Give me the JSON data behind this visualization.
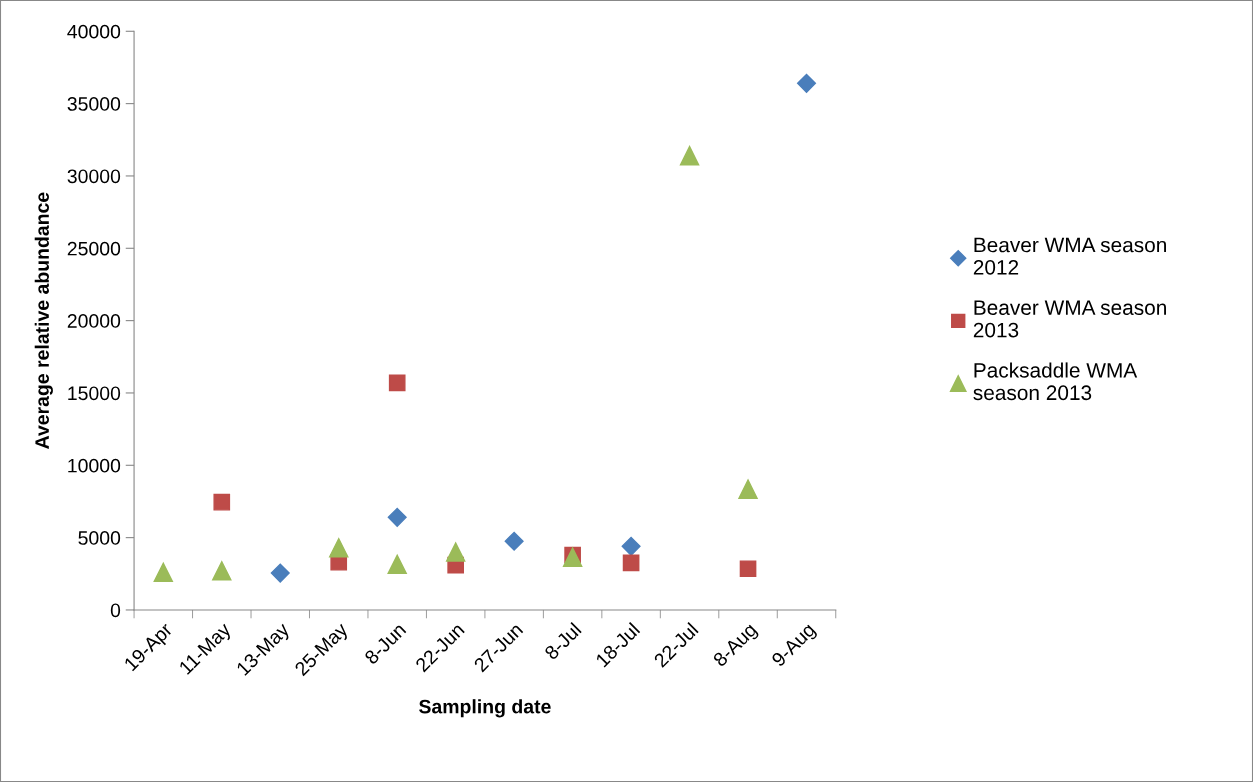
{
  "chart_data": {
    "type": "scatter",
    "xlabel": "Sampling date",
    "ylabel": "Average relative abundance",
    "categories": [
      "19-Apr",
      "11-May",
      "13-May",
      "25-May",
      "8-Jun",
      "22-Jun",
      "27-Jun",
      "8-Jul",
      "18-Jul",
      "22-Jul",
      "8-Aug",
      "9-Aug"
    ],
    "series": [
      {
        "name": "Beaver WMA season 2012",
        "color": "#4a7ebb",
        "marker": "diamond",
        "values": [
          null,
          null,
          2550,
          null,
          6400,
          null,
          4750,
          null,
          4400,
          null,
          null,
          36400
        ]
      },
      {
        "name": "Beaver WMA season 2013",
        "color": "#be4b48",
        "marker": "square",
        "values": [
          null,
          7450,
          null,
          3300,
          15700,
          3100,
          null,
          3800,
          3250,
          null,
          2850,
          null
        ]
      },
      {
        "name": "Packsaddle WMA season 2013",
        "color": "#9bbb59",
        "marker": "triangle",
        "values": [
          2600,
          2700,
          null,
          4300,
          3150,
          4000,
          null,
          3650,
          null,
          31400,
          8350,
          null
        ]
      }
    ],
    "ylim": [
      0,
      40000
    ],
    "yticks": [
      0,
      5000,
      10000,
      15000,
      20000,
      25000,
      30000,
      35000,
      40000
    ],
    "grid": false,
    "legend": "right"
  }
}
